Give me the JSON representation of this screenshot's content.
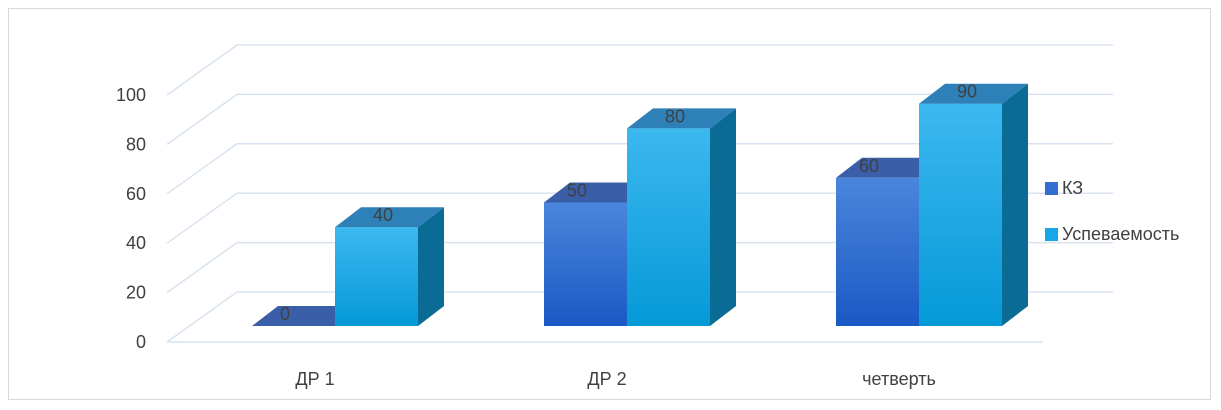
{
  "chart_data": {
    "type": "bar",
    "categories": [
      "ДР 1",
      "ДР 2",
      "четверть"
    ],
    "series": [
      {
        "name": "КЗ",
        "values": [
          0,
          50,
          60
        ],
        "color": "#2e6fd0"
      },
      {
        "name": "Успеваемость",
        "values": [
          40,
          80,
          90
        ],
        "color": "#18a7e6"
      }
    ],
    "title": "",
    "xlabel": "",
    "ylabel": "",
    "ylim": [
      0,
      100
    ],
    "yticks": [
      0,
      20,
      40,
      60,
      80,
      100
    ],
    "grid": true,
    "style": "3d-clustered-column",
    "legend_position": "right"
  }
}
